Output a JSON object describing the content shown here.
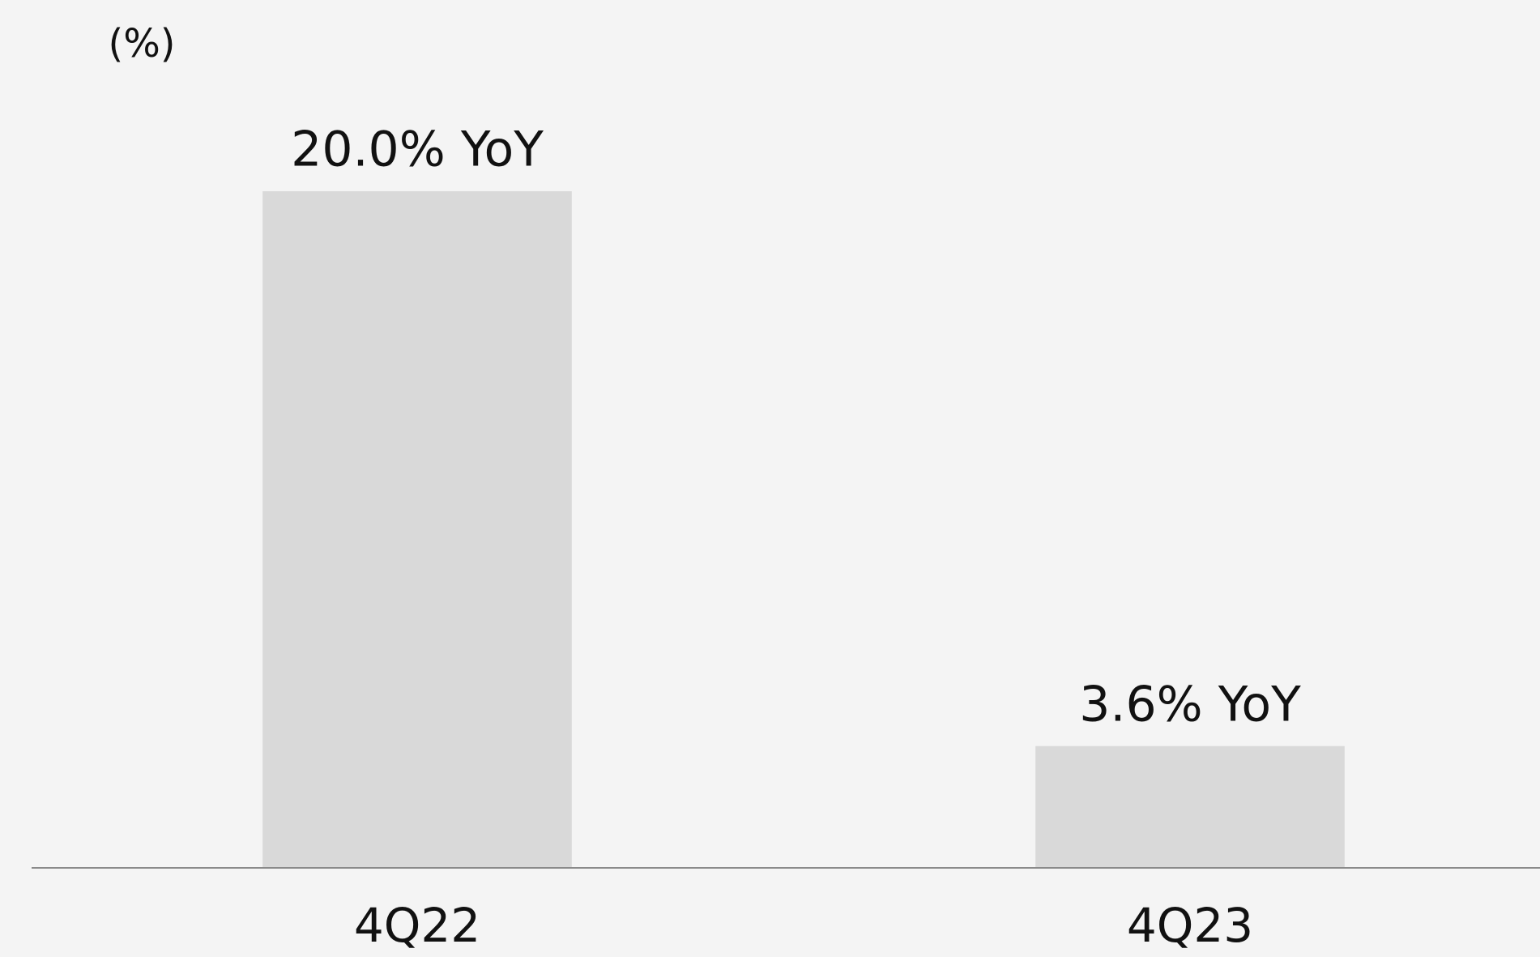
{
  "chart_data": {
    "type": "bar",
    "axis_label": "(%)",
    "categories": [
      "4Q22",
      "4Q23"
    ],
    "values": [
      20.0,
      3.6
    ],
    "value_labels": [
      "20.0% YoY",
      "3.6% YoY"
    ],
    "color": "#d9d9d9",
    "ylim": [
      0,
      20
    ]
  }
}
